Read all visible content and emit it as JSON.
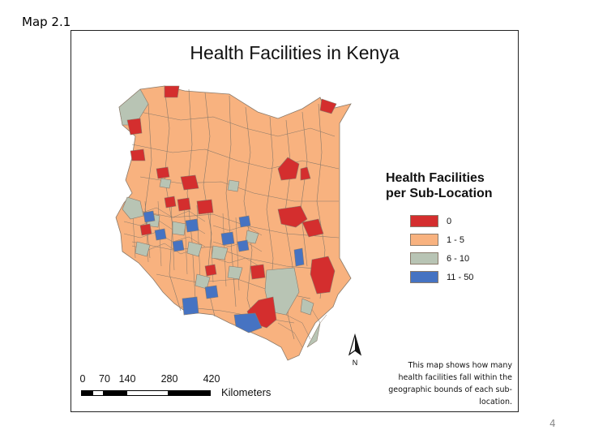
{
  "slide_label": "Map 2.1",
  "page_number": "4",
  "map": {
    "title": "Health Facilities in Kenya",
    "legend": {
      "title_line1": "Health Facilities",
      "title_line2": "per Sub-Location",
      "items": [
        {
          "label": "0",
          "color": "#d42e2e"
        },
        {
          "label": "1 - 5",
          "color": "#f8b27f"
        },
        {
          "label": "6 - 10",
          "color": "#b8c4b4"
        },
        {
          "label": "11 - 50",
          "color": "#4673c2"
        }
      ]
    },
    "north_label": "N",
    "note_lines": [
      "This map shows how many",
      "health facilities fall within the",
      "geographic bounds of each sub-",
      "location."
    ],
    "scale": {
      "ticks": [
        "0",
        "70",
        "140",
        "280",
        "420"
      ],
      "units": "Kilometers"
    },
    "outline_color": "#8a7a6a"
  }
}
